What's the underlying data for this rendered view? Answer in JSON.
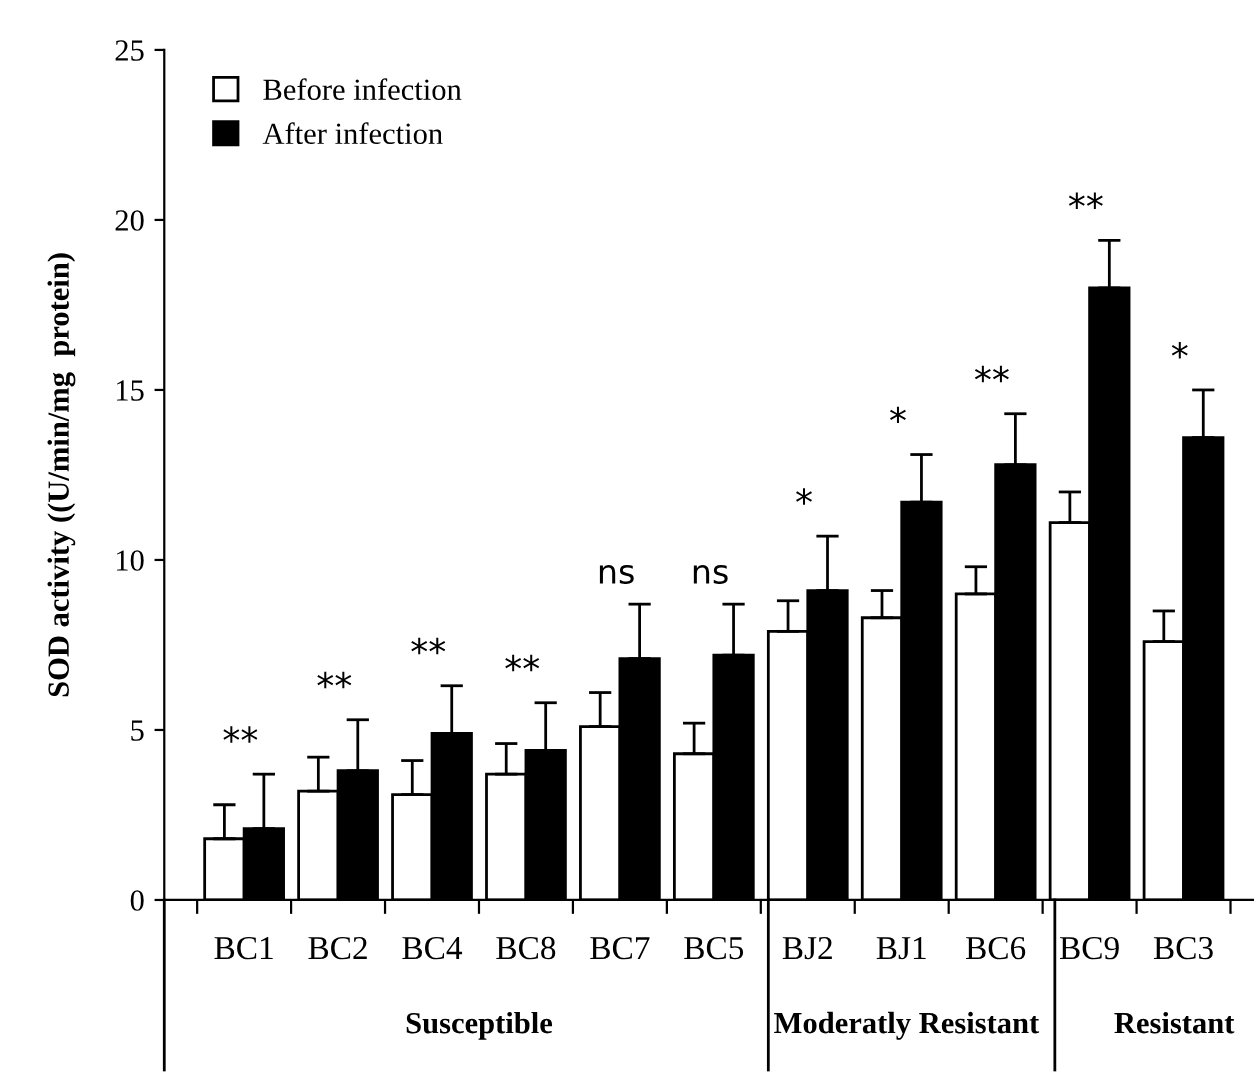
{
  "chart_data": {
    "type": "bar",
    "ylabel": "SOD activity ((U/min/mg  protein)",
    "categories": [
      "BC1",
      "BC2",
      "BC4",
      "BC8",
      "BC7",
      "BC5",
      "BJ2",
      "BJ1",
      "BC6",
      "BC9",
      "BC3"
    ],
    "series": [
      {
        "name": "Before infection",
        "color": "#ffffff",
        "values": [
          1.8,
          3.2,
          3.1,
          3.7,
          5.1,
          4.3,
          7.9,
          8.3,
          9.0,
          11.1,
          7.6
        ],
        "errors": [
          [
            1.8,
            2.8
          ],
          [
            3.2,
            4.2
          ],
          [
            3.1,
            4.1
          ],
          [
            3.7,
            4.6
          ],
          [
            5.1,
            6.1
          ],
          [
            4.3,
            5.2
          ],
          [
            7.9,
            8.8
          ],
          [
            8.3,
            9.1
          ],
          [
            9.0,
            9.8
          ],
          [
            11.1,
            12.0
          ],
          [
            7.6,
            8.5
          ]
        ]
      },
      {
        "name": "After infection",
        "color": "#000000",
        "values": [
          2.1,
          3.8,
          4.9,
          4.4,
          7.1,
          7.2,
          9.1,
          11.7,
          12.8,
          18.0,
          13.6
        ],
        "errors": [
          [
            2.1,
            3.7
          ],
          [
            3.8,
            5.3
          ],
          [
            4.9,
            6.3
          ],
          [
            4.4,
            5.8
          ],
          [
            7.1,
            8.7
          ],
          [
            7.2,
            8.7
          ],
          [
            9.1,
            10.7
          ],
          [
            11.7,
            13.1
          ],
          [
            12.8,
            14.3
          ],
          [
            18.0,
            19.4
          ],
          [
            13.6,
            15.0
          ]
        ]
      }
    ],
    "ylim": [
      0,
      25
    ],
    "yticks": [
      0,
      5,
      10,
      15,
      20,
      25
    ],
    "grid": false,
    "legend": "top left",
    "annotations": [
      "**",
      "**",
      "**",
      "**",
      "ns",
      "ns",
      "*",
      "*",
      "**",
      "**",
      "*",
      "Susceptible",
      "Moderatly Resistant",
      "Resistant"
    ]
  }
}
